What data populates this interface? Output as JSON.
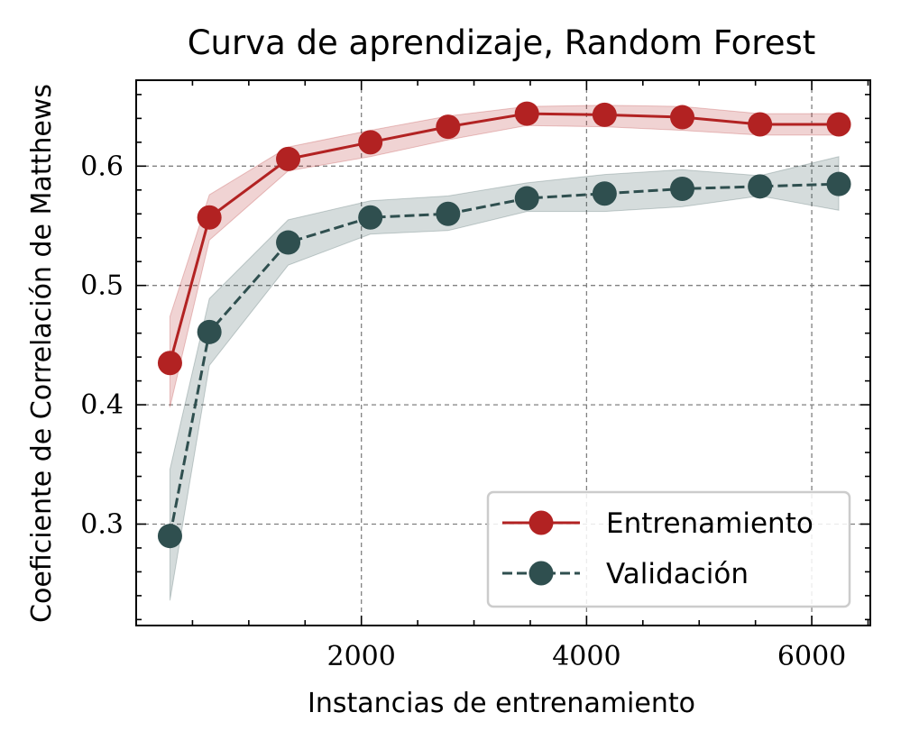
{
  "chart_data": {
    "type": "line",
    "title": "Curva de aprendizaje, Random Forest",
    "xlabel": "Instancias de entrenamiento",
    "ylabel": "Coeficiente de Correlación de Matthews",
    "xlim": [
      0,
      6520
    ],
    "ylim": [
      0.215,
      0.672
    ],
    "xticks": [
      2000,
      4000,
      6000
    ],
    "xtick_labels": [
      "2000",
      "4000",
      "6000"
    ],
    "yticks": [
      0.3,
      0.4,
      0.5,
      0.6
    ],
    "ytick_labels": [
      "0.3",
      "0.4",
      "0.5",
      "0.6"
    ],
    "grid": true,
    "legend_position": "lower-right",
    "x": [
      300,
      650,
      1350,
      2080,
      2770,
      3470,
      4160,
      4850,
      5540,
      6240
    ],
    "series": [
      {
        "name": "Entrenamiento",
        "color": "#b22222",
        "line_style": "solid",
        "values": [
          0.435,
          0.557,
          0.606,
          0.62,
          0.633,
          0.644,
          0.643,
          0.641,
          0.635,
          0.635
        ],
        "band_lower": [
          0.398,
          0.538,
          0.596,
          0.608,
          0.622,
          0.634,
          0.633,
          0.63,
          0.626,
          0.626
        ],
        "band_upper": [
          0.474,
          0.576,
          0.616,
          0.63,
          0.642,
          0.65,
          0.651,
          0.65,
          0.644,
          0.644
        ]
      },
      {
        "name": "Validación",
        "color": "#2f4f4f",
        "line_style": "dashed",
        "values": [
          0.29,
          0.461,
          0.536,
          0.557,
          0.56,
          0.573,
          0.577,
          0.581,
          0.583,
          0.585
        ],
        "band_lower": [
          0.236,
          0.433,
          0.517,
          0.543,
          0.546,
          0.562,
          0.562,
          0.566,
          0.575,
          0.563
        ],
        "band_upper": [
          0.346,
          0.489,
          0.555,
          0.571,
          0.575,
          0.586,
          0.593,
          0.597,
          0.592,
          0.608
        ]
      }
    ]
  }
}
